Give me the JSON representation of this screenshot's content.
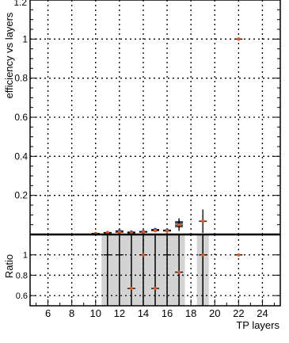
{
  "chart_data": [
    {
      "type": "scatter",
      "title": "",
      "ylabel": "efficiency vs layers",
      "xlabel": "",
      "xlim": [
        4.5,
        25.5
      ],
      "ylim": [
        0,
        1.2
      ],
      "grid": true,
      "yticks": [
        0.2,
        0.4,
        0.6,
        0.8,
        1
      ],
      "ytick_labels": [
        "0.2",
        "0.4",
        "0.6",
        "0.8",
        "1"
      ],
      "top_partial_tick_label": "1.2",
      "series": [
        {
          "color": "#2f3fa8",
          "points": [
            {
              "x": 11,
              "y": 0.008,
              "yerr": 0.005
            },
            {
              "x": 12,
              "y": 0.018,
              "yerr": 0.006
            },
            {
              "x": 13,
              "y": 0.012,
              "yerr": 0.005
            },
            {
              "x": 14,
              "y": 0.015,
              "yerr": 0.006
            },
            {
              "x": 15,
              "y": 0.025,
              "yerr": 0.008
            },
            {
              "x": 16,
              "y": 0.022,
              "yerr": 0.008
            },
            {
              "x": 17,
              "y": 0.058,
              "yerr": 0.025
            }
          ]
        },
        {
          "color": "#e0561b",
          "points": [
            {
              "x": 10,
              "y": 0.005,
              "yerr": 0.004
            },
            {
              "x": 11,
              "y": 0.01,
              "yerr": 0.005
            },
            {
              "x": 12,
              "y": 0.012,
              "yerr": 0.006
            },
            {
              "x": 13,
              "y": 0.008,
              "yerr": 0.005
            },
            {
              "x": 14,
              "y": 0.012,
              "yerr": 0.006
            },
            {
              "x": 15,
              "y": 0.02,
              "yerr": 0.008
            },
            {
              "x": 16,
              "y": 0.018,
              "yerr": 0.008
            },
            {
              "x": 17,
              "y": 0.048,
              "yerr": 0.03
            },
            {
              "x": 19,
              "y": 0.068,
              "yerr": 0.06
            },
            {
              "x": 22,
              "y": 1.0,
              "yerr": 0.0
            }
          ]
        }
      ]
    },
    {
      "type": "scatter",
      "title": "",
      "ylabel": "Ratio",
      "xlabel": "TP layers",
      "xlim": [
        4.5,
        25.5
      ],
      "ylim": [
        0.5,
        1.2
      ],
      "grid": true,
      "xticks": [
        6,
        8,
        10,
        12,
        14,
        16,
        18,
        20,
        22,
        24
      ],
      "xtick_labels": [
        "6",
        "8",
        "10",
        "12",
        "14",
        "16",
        "18",
        "20",
        "22",
        "24"
      ],
      "yticks": [
        0.6,
        0.8,
        1
      ],
      "ytick_labels": [
        "0.6",
        "0.8",
        "1"
      ],
      "bands": [
        {
          "x0": 10.5,
          "x1": 17.5,
          "y0": 0.5,
          "y1": 1.2
        },
        {
          "x0": 18.5,
          "x1": 19.5,
          "y0": 0.5,
          "y1": 1.2
        }
      ],
      "points": [
        {
          "x": 11,
          "y": 1.0,
          "ylo": 0.5,
          "yhi": 1.2,
          "marker": false
        },
        {
          "x": 12,
          "y": 1.0,
          "ylo": 0.5,
          "yhi": 1.2,
          "marker": false
        },
        {
          "x": 13,
          "y": 0.67,
          "ylo": 0.5,
          "yhi": 1.2,
          "marker": true
        },
        {
          "x": 14,
          "y": 1.0,
          "ylo": 0.5,
          "yhi": 1.2,
          "marker": true
        },
        {
          "x": 15,
          "y": 0.67,
          "ylo": 0.5,
          "yhi": 1.2,
          "marker": true
        },
        {
          "x": 16,
          "y": 1.0,
          "ylo": 0.5,
          "yhi": 1.2,
          "marker": false
        },
        {
          "x": 17,
          "y": 0.83,
          "ylo": 0.5,
          "yhi": 1.2,
          "marker": true
        },
        {
          "x": 19,
          "y": 1.0,
          "ylo": 0.5,
          "yhi": 1.2,
          "marker": true
        },
        {
          "x": 22,
          "y": 1.0,
          "ylo": 1.0,
          "yhi": 1.0,
          "marker": true
        }
      ],
      "colors": {
        "band": "#d3d3d3",
        "marker": "#e0561b"
      }
    }
  ]
}
